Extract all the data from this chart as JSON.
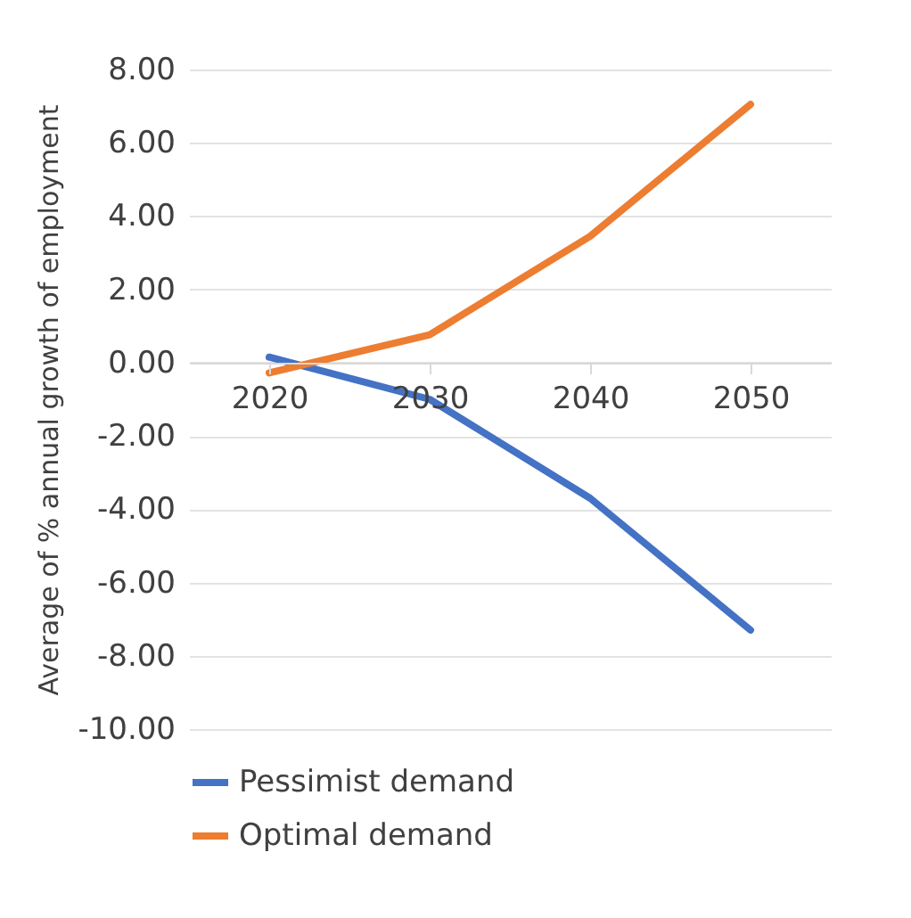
{
  "chart_data": {
    "type": "line",
    "ylabel": "Average  of % annual growth of employment",
    "categories": [
      "2020",
      "2030",
      "2040",
      "2050"
    ],
    "series": [
      {
        "name": "Pessimist demand",
        "color": "#4472c4",
        "values": [
          0.15,
          -1.0,
          -3.7,
          -7.3
        ]
      },
      {
        "name": "Optimal demand",
        "color": "#ed7d31",
        "values": [
          -0.28,
          0.76,
          3.45,
          7.05
        ]
      }
    ],
    "ylim": [
      -10,
      8
    ],
    "yticks": [
      {
        "value": -10,
        "label": "-10.00"
      },
      {
        "value": -8,
        "label": "-8.00"
      },
      {
        "value": -6,
        "label": "-6.00"
      },
      {
        "value": -4,
        "label": "-4.00"
      },
      {
        "value": -2,
        "label": "-2.00"
      },
      {
        "value": 0,
        "label": "0.00"
      },
      {
        "value": 2,
        "label": "2.00"
      },
      {
        "value": 4,
        "label": "4.00"
      },
      {
        "value": 6,
        "label": "6.00"
      },
      {
        "value": 8,
        "label": "8.00"
      }
    ],
    "grid": "y",
    "legend": "bottom",
    "marker": "none",
    "line_style": "solid"
  }
}
